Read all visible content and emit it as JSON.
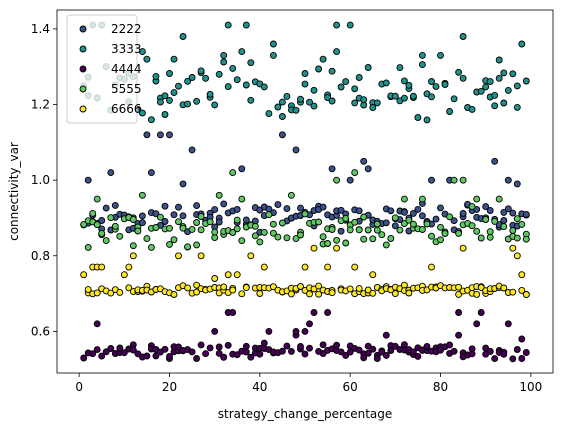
{
  "chart_data": {
    "type": "scatter",
    "title": "",
    "xlabel": "strategy_change_percentage",
    "ylabel": "connectivity_var",
    "xlim": [
      -4.9,
      104.9
    ],
    "ylim": [
      0.49,
      1.45
    ],
    "x_ticks": [
      0,
      20,
      40,
      60,
      80,
      100
    ],
    "y_ticks": [
      0.6,
      0.8,
      1.0,
      1.2,
      1.4
    ],
    "x_tick_labels": [
      "0",
      "20",
      "40",
      "60",
      "80",
      "100"
    ],
    "y_tick_labels": [
      "0.6",
      "0.8",
      "1.0",
      "1.2",
      "1.4"
    ],
    "grid": false,
    "legend_position": "upper-left",
    "marker_edge_color": "#000000",
    "series": [
      {
        "name": "2222",
        "color": "#3b528b",
        "base": [
          0.875,
          0.93
        ],
        "spread": 0.03,
        "high_values": [
          0.98,
          1.0,
          1.02,
          1.05,
          1.08,
          1.12,
          0.99,
          1.03
        ],
        "seed": 11
      },
      {
        "name": "3333",
        "color": "#21918c",
        "base": [
          1.18,
          1.3
        ],
        "spread": 0.06,
        "high_values": [
          1.33,
          1.36,
          1.41,
          1.38,
          1.34,
          1.41,
          1.32
        ],
        "seed": 23
      },
      {
        "name": "4444",
        "color": "#440154",
        "base": [
          0.535,
          0.56
        ],
        "spread": 0.02,
        "high_values": [
          0.58,
          0.6,
          0.62,
          0.65,
          0.67,
          0.59
        ],
        "seed": 37
      },
      {
        "name": "5555",
        "color": "#5ec962",
        "base": [
          0.83,
          0.9
        ],
        "spread": 0.03,
        "high_values": [
          0.93,
          0.96,
          1.0,
          1.02,
          0.95
        ],
        "seed": 41
      },
      {
        "name": "6666",
        "color": "#fde725",
        "base": [
          0.7,
          0.72
        ],
        "spread": 0.01,
        "high_values": [
          0.75,
          0.77,
          0.8,
          0.82,
          0.74
        ],
        "seed": 53
      }
    ]
  }
}
